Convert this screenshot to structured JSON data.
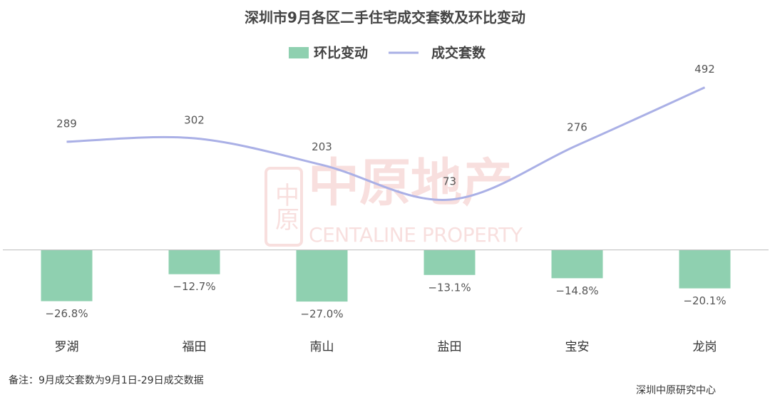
{
  "chart_data": {
    "type": "bar-line",
    "title": "深圳市9月各区二手住宅成交套数及环比变动",
    "categories": [
      "罗湖",
      "福田",
      "南山",
      "盐田",
      "宝安",
      "龙岗"
    ],
    "series": [
      {
        "name": "环比变动",
        "type": "bar",
        "color": "#8fd0b0",
        "values": [
          -26.8,
          -12.7,
          -27.0,
          -13.1,
          -14.8,
          -20.1
        ],
        "value_labels": [
          "−26.8%",
          "−12.7%",
          "−27.0%",
          "−13.1%",
          "−14.8%",
          "−20.1%"
        ]
      },
      {
        "name": "成交套数",
        "type": "line",
        "axis": "y2",
        "color": "#aab0e6",
        "smooth": true,
        "values": [
          289,
          302,
          203,
          73,
          276,
          492
        ]
      }
    ],
    "ylim": [
      -40,
      100
    ],
    "y2lim": [
      -400,
      600
    ],
    "legend": "top",
    "watermark": {
      "cn": "中原地产",
      "en": "CENTALINE PROPERTY",
      "seal": "中原"
    },
    "note": "备注：9月成交套数为9月1日-29日成交数据",
    "source": "深圳中原研究中心"
  }
}
